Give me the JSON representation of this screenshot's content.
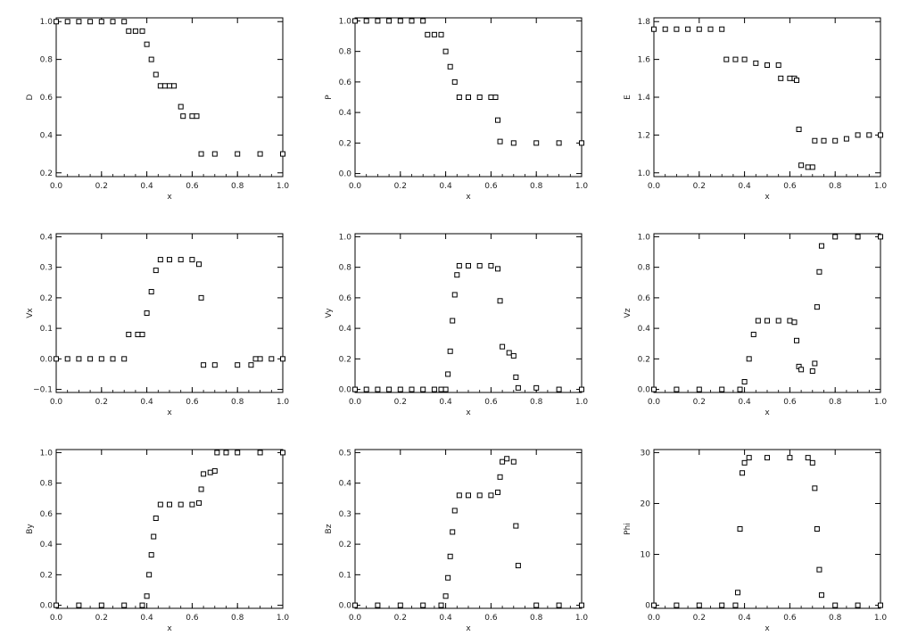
{
  "chart_data": [
    {
      "type": "scatter",
      "xlabel": "x",
      "ylabel": "D",
      "xlim": [
        0,
        1
      ],
      "ylim": [
        0.18,
        1.02
      ],
      "xticks": [
        0.0,
        0.2,
        0.4,
        0.6,
        0.8,
        1.0
      ],
      "xtick_labels": [
        "0.0",
        "0.2",
        "0.4",
        "0.6",
        "0.8",
        "1.0"
      ],
      "yticks": [
        0.2,
        0.4,
        0.6,
        0.8,
        1.0
      ],
      "ytick_labels": [
        "0.2",
        "0.4",
        "0.6",
        "0.8",
        "1.0"
      ],
      "x": [
        0.0,
        0.05,
        0.1,
        0.15,
        0.2,
        0.25,
        0.3,
        0.32,
        0.35,
        0.38,
        0.4,
        0.42,
        0.44,
        0.46,
        0.48,
        0.5,
        0.52,
        0.55,
        0.56,
        0.6,
        0.62,
        0.64,
        0.7,
        0.8,
        0.9,
        1.0
      ],
      "y": [
        1.0,
        1.0,
        1.0,
        1.0,
        1.0,
        1.0,
        1.0,
        0.95,
        0.95,
        0.95,
        0.88,
        0.8,
        0.72,
        0.66,
        0.66,
        0.66,
        0.66,
        0.55,
        0.5,
        0.5,
        0.5,
        0.3,
        0.3,
        0.3,
        0.3,
        0.3
      ]
    },
    {
      "type": "scatter",
      "xlabel": "x",
      "ylabel": "P",
      "xlim": [
        0,
        1
      ],
      "ylim": [
        -0.02,
        1.02
      ],
      "xticks": [
        0.0,
        0.2,
        0.4,
        0.6,
        0.8,
        1.0
      ],
      "xtick_labels": [
        "0.0",
        "0.2",
        "0.4",
        "0.6",
        "0.8",
        "1.0"
      ],
      "yticks": [
        0.0,
        0.2,
        0.4,
        0.6,
        0.8,
        1.0
      ],
      "ytick_labels": [
        "0.0",
        "0.2",
        "0.4",
        "0.6",
        "0.8",
        "1.0"
      ],
      "x": [
        0.0,
        0.05,
        0.1,
        0.15,
        0.2,
        0.25,
        0.3,
        0.32,
        0.35,
        0.38,
        0.4,
        0.42,
        0.44,
        0.46,
        0.5,
        0.55,
        0.6,
        0.62,
        0.63,
        0.64,
        0.7,
        0.8,
        0.9,
        1.0
      ],
      "y": [
        1.0,
        1.0,
        1.0,
        1.0,
        1.0,
        1.0,
        1.0,
        0.91,
        0.91,
        0.91,
        0.8,
        0.7,
        0.6,
        0.5,
        0.5,
        0.5,
        0.5,
        0.5,
        0.35,
        0.21,
        0.2,
        0.2,
        0.2,
        0.2
      ]
    },
    {
      "type": "scatter",
      "xlabel": "x",
      "ylabel": "E",
      "xlim": [
        0,
        1
      ],
      "ylim": [
        0.98,
        1.82
      ],
      "xticks": [
        0.0,
        0.2,
        0.4,
        0.6,
        0.8,
        1.0
      ],
      "xtick_labels": [
        "0.0",
        "0.2",
        "0.4",
        "0.6",
        "0.8",
        "1.0"
      ],
      "yticks": [
        1.0,
        1.2,
        1.4,
        1.6,
        1.8
      ],
      "ytick_labels": [
        "1.0",
        "1.2",
        "1.4",
        "1.6",
        "1.8"
      ],
      "x": [
        0.0,
        0.05,
        0.1,
        0.15,
        0.2,
        0.25,
        0.3,
        0.32,
        0.36,
        0.4,
        0.45,
        0.5,
        0.55,
        0.56,
        0.6,
        0.62,
        0.63,
        0.64,
        0.65,
        0.68,
        0.7,
        0.71,
        0.75,
        0.8,
        0.85,
        0.9,
        0.95,
        1.0
      ],
      "y": [
        1.76,
        1.76,
        1.76,
        1.76,
        1.76,
        1.76,
        1.76,
        1.6,
        1.6,
        1.6,
        1.58,
        1.57,
        1.57,
        1.5,
        1.5,
        1.5,
        1.49,
        1.23,
        1.04,
        1.03,
        1.03,
        1.17,
        1.17,
        1.17,
        1.18,
        1.2,
        1.2,
        1.2
      ]
    },
    {
      "type": "scatter",
      "xlabel": "x",
      "ylabel": "Vx",
      "xlim": [
        0,
        1
      ],
      "ylim": [
        -0.11,
        0.41
      ],
      "xticks": [
        0.0,
        0.2,
        0.4,
        0.6,
        0.8,
        1.0
      ],
      "xtick_labels": [
        "0.0",
        "0.2",
        "0.4",
        "0.6",
        "0.8",
        "1.0"
      ],
      "yticks": [
        -0.1,
        0.0,
        0.1,
        0.2,
        0.3,
        0.4
      ],
      "ytick_labels": [
        "−0.1",
        "0.0",
        "0.1",
        "0.2",
        "0.3",
        "0.4"
      ],
      "x": [
        0.0,
        0.05,
        0.1,
        0.15,
        0.2,
        0.25,
        0.3,
        0.32,
        0.36,
        0.38,
        0.4,
        0.42,
        0.44,
        0.46,
        0.5,
        0.55,
        0.6,
        0.63,
        0.64,
        0.65,
        0.7,
        0.8,
        0.86,
        0.88,
        0.9,
        0.95,
        1.0
      ],
      "y": [
        0.0,
        0.0,
        0.0,
        0.0,
        0.0,
        0.0,
        0.0,
        0.08,
        0.08,
        0.08,
        0.15,
        0.22,
        0.29,
        0.325,
        0.325,
        0.325,
        0.325,
        0.31,
        0.2,
        -0.02,
        -0.02,
        -0.02,
        -0.02,
        0.0,
        0.0,
        0.0,
        0.0
      ]
    },
    {
      "type": "scatter",
      "xlabel": "x",
      "ylabel": "Vy",
      "xlim": [
        0,
        1
      ],
      "ylim": [
        -0.02,
        1.02
      ],
      "xticks": [
        0.0,
        0.2,
        0.4,
        0.6,
        0.8,
        1.0
      ],
      "xtick_labels": [
        "0.0",
        "0.2",
        "0.4",
        "0.6",
        "0.8",
        "1.0"
      ],
      "yticks": [
        0.0,
        0.2,
        0.4,
        0.6,
        0.8,
        1.0
      ],
      "ytick_labels": [
        "0.0",
        "0.2",
        "0.4",
        "0.6",
        "0.8",
        "1.0"
      ],
      "x": [
        0.0,
        0.05,
        0.1,
        0.15,
        0.2,
        0.25,
        0.3,
        0.35,
        0.38,
        0.4,
        0.41,
        0.42,
        0.43,
        0.44,
        0.45,
        0.46,
        0.5,
        0.55,
        0.6,
        0.63,
        0.64,
        0.65,
        0.68,
        0.7,
        0.71,
        0.72,
        0.8,
        0.9,
        1.0
      ],
      "y": [
        0.0,
        0.0,
        0.0,
        0.0,
        0.0,
        0.0,
        0.0,
        0.0,
        0.0,
        0.0,
        0.1,
        0.25,
        0.45,
        0.62,
        0.75,
        0.81,
        0.81,
        0.81,
        0.81,
        0.79,
        0.58,
        0.28,
        0.24,
        0.22,
        0.08,
        0.01,
        0.01,
        0.0,
        0.0
      ]
    },
    {
      "type": "scatter",
      "xlabel": "x",
      "ylabel": "Vz",
      "xlim": [
        0,
        1
      ],
      "ylim": [
        -0.02,
        1.02
      ],
      "xticks": [
        0.0,
        0.2,
        0.4,
        0.6,
        0.8,
        1.0
      ],
      "xtick_labels": [
        "0.0",
        "0.2",
        "0.4",
        "0.6",
        "0.8",
        "1.0"
      ],
      "yticks": [
        0.0,
        0.2,
        0.4,
        0.6,
        0.8,
        1.0
      ],
      "ytick_labels": [
        "0.0",
        "0.2",
        "0.4",
        "0.6",
        "0.8",
        "1.0"
      ],
      "x": [
        0.0,
        0.1,
        0.2,
        0.3,
        0.38,
        0.4,
        0.42,
        0.44,
        0.46,
        0.5,
        0.55,
        0.6,
        0.62,
        0.63,
        0.64,
        0.65,
        0.7,
        0.71,
        0.72,
        0.73,
        0.74,
        0.8,
        0.9,
        1.0
      ],
      "y": [
        0.0,
        0.0,
        0.0,
        0.0,
        0.0,
        0.05,
        0.2,
        0.36,
        0.45,
        0.45,
        0.45,
        0.45,
        0.44,
        0.32,
        0.15,
        0.13,
        0.12,
        0.17,
        0.54,
        0.77,
        0.94,
        1.0,
        1.0,
        1.0
      ]
    },
    {
      "type": "scatter",
      "xlabel": "x",
      "ylabel": "By",
      "xlim": [
        0,
        1
      ],
      "ylim": [
        -0.02,
        1.02
      ],
      "xticks": [
        0.0,
        0.2,
        0.4,
        0.6,
        0.8,
        1.0
      ],
      "xtick_labels": [
        "0.0",
        "0.2",
        "0.4",
        "0.6",
        "0.8",
        "1.0"
      ],
      "yticks": [
        0.0,
        0.2,
        0.4,
        0.6,
        0.8,
        1.0
      ],
      "ytick_labels": [
        "0.0",
        "0.2",
        "0.4",
        "0.6",
        "0.8",
        "1.0"
      ],
      "x": [
        0.0,
        0.1,
        0.2,
        0.3,
        0.38,
        0.4,
        0.41,
        0.42,
        0.43,
        0.44,
        0.46,
        0.5,
        0.55,
        0.6,
        0.63,
        0.64,
        0.65,
        0.68,
        0.7,
        0.71,
        0.75,
        0.8,
        0.9,
        1.0
      ],
      "y": [
        0.0,
        0.0,
        0.0,
        0.0,
        0.0,
        0.06,
        0.2,
        0.33,
        0.45,
        0.57,
        0.66,
        0.66,
        0.66,
        0.66,
        0.67,
        0.76,
        0.86,
        0.87,
        0.88,
        1.0,
        1.0,
        1.0,
        1.0,
        1.0
      ]
    },
    {
      "type": "scatter",
      "xlabel": "x",
      "ylabel": "Bz",
      "xlim": [
        0,
        1
      ],
      "ylim": [
        -0.01,
        0.51
      ],
      "xticks": [
        0.0,
        0.2,
        0.4,
        0.6,
        0.8,
        1.0
      ],
      "xtick_labels": [
        "0.0",
        "0.2",
        "0.4",
        "0.6",
        "0.8",
        "1.0"
      ],
      "yticks": [
        0.0,
        0.1,
        0.2,
        0.3,
        0.4,
        0.5
      ],
      "ytick_labels": [
        "0.0",
        "0.1",
        "0.2",
        "0.3",
        "0.4",
        "0.5"
      ],
      "x": [
        0.0,
        0.1,
        0.2,
        0.3,
        0.38,
        0.4,
        0.41,
        0.42,
        0.43,
        0.44,
        0.46,
        0.5,
        0.55,
        0.6,
        0.63,
        0.64,
        0.65,
        0.67,
        0.7,
        0.71,
        0.72,
        0.8,
        0.9,
        1.0
      ],
      "y": [
        0.0,
        0.0,
        0.0,
        0.0,
        0.0,
        0.03,
        0.09,
        0.16,
        0.24,
        0.31,
        0.36,
        0.36,
        0.36,
        0.36,
        0.37,
        0.42,
        0.47,
        0.48,
        0.47,
        0.26,
        0.13,
        0.0,
        0.0,
        0.0
      ]
    },
    {
      "type": "scatter",
      "xlabel": "x",
      "ylabel": "Phi",
      "xlim": [
        0,
        1
      ],
      "ylim": [
        -0.6,
        30.6
      ],
      "xticks": [
        0.0,
        0.2,
        0.4,
        0.6,
        0.8,
        1.0
      ],
      "xtick_labels": [
        "0.0",
        "0.2",
        "0.4",
        "0.6",
        "0.8",
        "1.0"
      ],
      "yticks": [
        0,
        10,
        20,
        30
      ],
      "ytick_labels": [
        "0",
        "10",
        "20",
        "30"
      ],
      "x": [
        0.0,
        0.1,
        0.2,
        0.3,
        0.36,
        0.37,
        0.38,
        0.39,
        0.4,
        0.42,
        0.5,
        0.6,
        0.68,
        0.7,
        0.71,
        0.72,
        0.73,
        0.74,
        0.8,
        0.9,
        1.0
      ],
      "y": [
        0.0,
        0.0,
        0.0,
        0.0,
        0.0,
        2.5,
        15,
        26,
        28,
        29,
        29,
        29,
        29,
        28,
        23,
        15,
        7,
        2,
        0.0,
        0.0,
        0.0
      ]
    }
  ]
}
